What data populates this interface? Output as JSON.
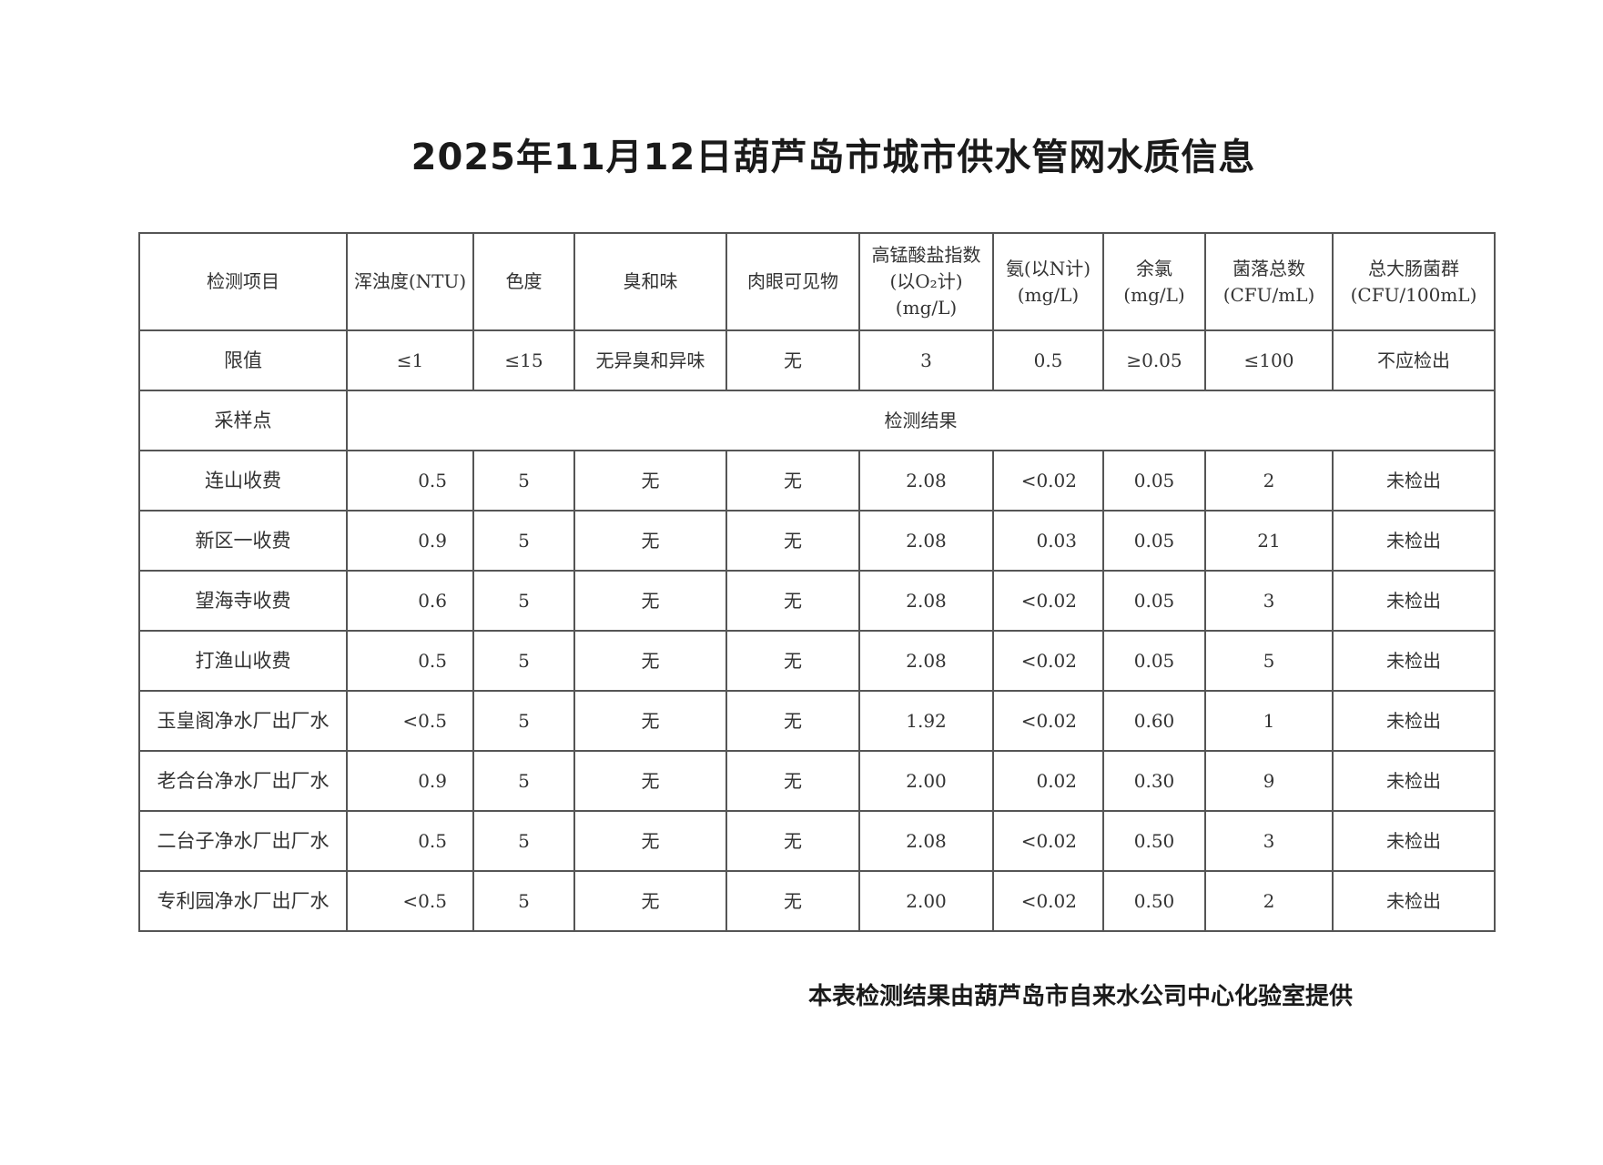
{
  "title": "2025年11月12日葫芦岛市城市供水管网水质信息",
  "header": {
    "item": "检测项目",
    "columns": [
      [
        "浑浊度(NTU)"
      ],
      [
        "色度"
      ],
      [
        "臭和味"
      ],
      [
        "肉眼可见物"
      ],
      [
        "高锰酸盐指数",
        "(以O₂计)",
        "(mg/L)"
      ],
      [
        "氨(以N计)",
        "(mg/L)"
      ],
      [
        "余氯",
        "(mg/L)"
      ],
      [
        "菌落总数",
        "(CFU/mL)"
      ],
      [
        "总大肠菌群",
        "(CFU/100mL)"
      ]
    ]
  },
  "limits": {
    "label": "限值",
    "values": [
      "≤1",
      "≤15",
      "无异臭和异味",
      "无",
      "3",
      "0.5",
      "≥0.05",
      "≤100",
      "不应检出"
    ]
  },
  "section": {
    "site_label": "采样点",
    "result_label": "检测结果"
  },
  "rows": [
    {
      "site": "连山收费",
      "values": [
        "0.5",
        "5",
        "无",
        "无",
        "2.08",
        "<0.02",
        "0.05",
        "2",
        "未检出"
      ]
    },
    {
      "site": "新区一收费",
      "values": [
        "0.9",
        "5",
        "无",
        "无",
        "2.08",
        "0.03",
        "0.05",
        "21",
        "未检出"
      ]
    },
    {
      "site": "望海寺收费",
      "values": [
        "0.6",
        "5",
        "无",
        "无",
        "2.08",
        "<0.02",
        "0.05",
        "3",
        "未检出"
      ]
    },
    {
      "site": "打渔山收费",
      "values": [
        "0.5",
        "5",
        "无",
        "无",
        "2.08",
        "<0.02",
        "0.05",
        "5",
        "未检出"
      ]
    },
    {
      "site": "玉皇阁净水厂出厂水",
      "values": [
        "<0.5",
        "5",
        "无",
        "无",
        "1.92",
        "<0.02",
        "0.60",
        "1",
        "未检出"
      ]
    },
    {
      "site": "老合台净水厂出厂水",
      "values": [
        "0.9",
        "5",
        "无",
        "无",
        "2.00",
        "0.02",
        "0.30",
        "9",
        "未检出"
      ]
    },
    {
      "site": "二台子净水厂出厂水",
      "values": [
        "0.5",
        "5",
        "无",
        "无",
        "2.08",
        "<0.02",
        "0.50",
        "3",
        "未检出"
      ]
    },
    {
      "site": "专利园净水厂出厂水",
      "values": [
        "<0.5",
        "5",
        "无",
        "无",
        "2.00",
        "<0.02",
        "0.50",
        "2",
        "未检出"
      ]
    }
  ],
  "footer": "本表检测结果由葫芦岛市自来水公司中心化验室提供"
}
